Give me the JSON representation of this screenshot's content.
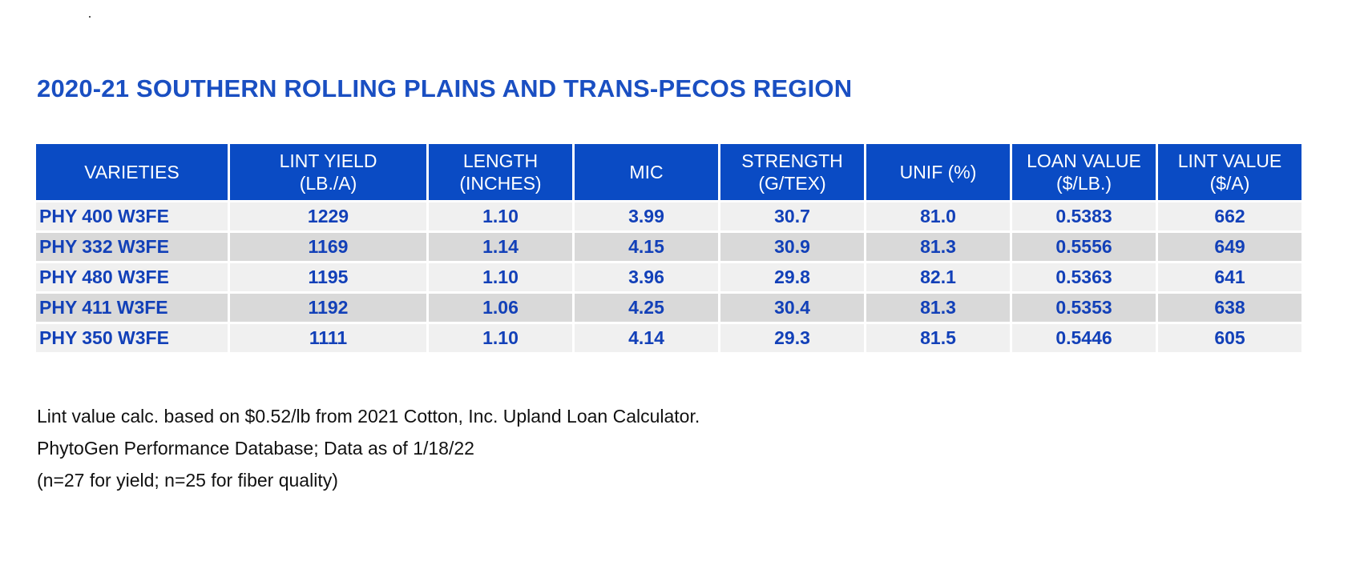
{
  "title": "2020-21 SOUTHERN ROLLING PLAINS AND TRANS-PECOS REGION",
  "table": {
    "headers": [
      {
        "line1": "VARIETIES",
        "line2": ""
      },
      {
        "line1": "LINT YIELD",
        "line2": "(LB./A)"
      },
      {
        "line1": "LENGTH",
        "line2": "(INCHES)"
      },
      {
        "line1": "MIC",
        "line2": ""
      },
      {
        "line1": "STRENGTH",
        "line2": "(G/TEX)"
      },
      {
        "line1": "UNIF (%)",
        "line2": ""
      },
      {
        "line1": "LOAN VALUE",
        "line2": "($/LB.)"
      },
      {
        "line1": "LINT VALUE",
        "line2": "($/A)"
      }
    ],
    "rows": [
      [
        "PHY 400 W3FE",
        "1229",
        "1.10",
        "3.99",
        "30.7",
        "81.0",
        "0.5383",
        "662"
      ],
      [
        "PHY 332 W3FE",
        "1169",
        "1.14",
        "4.15",
        "30.9",
        "81.3",
        "0.5556",
        "649"
      ],
      [
        "PHY 480 W3FE",
        "1195",
        "1.10",
        "3.96",
        "29.8",
        "82.1",
        "0.5363",
        "641"
      ],
      [
        "PHY 411 W3FE",
        "1192",
        "1.06",
        "4.25",
        "30.4",
        "81.3",
        "0.5353",
        "638"
      ],
      [
        "PHY 350 W3FE",
        "1111",
        "1.10",
        "4.14",
        "29.3",
        "81.5",
        "0.5446",
        "605"
      ]
    ]
  },
  "notes": [
    "Lint value calc. based on $0.52/lb from 2021 Cotton, Inc. Upland Loan Calculator.",
    "PhytoGen Performance Database; Data as of 1/18/22",
    "(n=27 for yield; n=25 for fiber quality)"
  ],
  "colors": {
    "header_bg": "#0a4bc4",
    "title_text": "#1a4fc2",
    "cell_text": "#1240b8",
    "row_light": "#f0f0f0",
    "row_dark": "#d9d9d9"
  }
}
